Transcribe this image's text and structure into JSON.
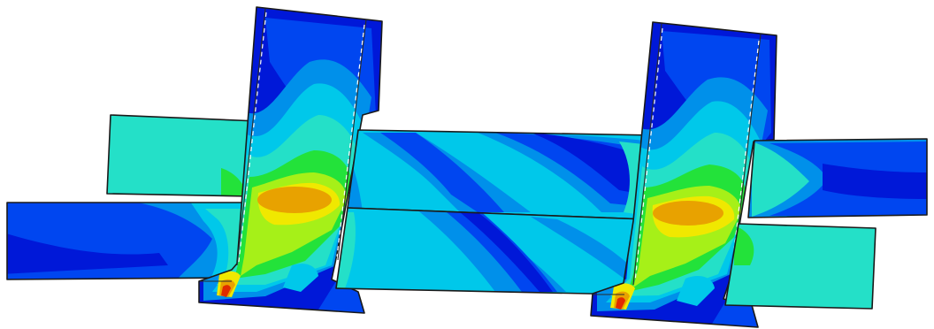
{
  "figure": {
    "type": "finite-element stress contour plot",
    "palette": {
      "deep_blue": "#0018d8",
      "blue": "#0046f0",
      "light_blue": "#0090ea",
      "cyan": "#00c8ea",
      "teal": "#24e0c8",
      "green": "#23e23a",
      "yellow_green": "#a6f018",
      "yellow": "#f0e800",
      "orange": "#e8a200",
      "red": "#e02a00",
      "outline": "#1a1a1a",
      "background": "#ffffff"
    },
    "hotspots": [
      "orange-core-left",
      "orange-core-right",
      "red-corner-left",
      "red-corner-right"
    ]
  }
}
